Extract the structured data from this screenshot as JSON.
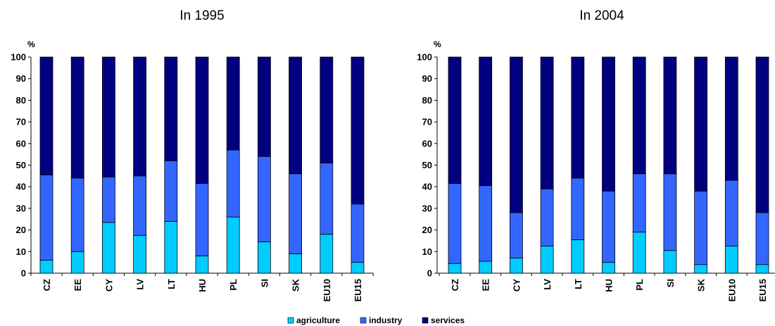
{
  "colors": {
    "agriculture": "#00CCFF",
    "industry": "#3366FF",
    "services": "#000080"
  },
  "chart_data": [
    {
      "type": "bar",
      "stacked": true,
      "title": "In 1995",
      "ylabel": "%",
      "ylim": [
        0,
        100
      ],
      "yticks": [
        0,
        10,
        20,
        30,
        40,
        50,
        60,
        70,
        80,
        90,
        100
      ],
      "categories": [
        "CZ",
        "EE",
        "CY",
        "LV",
        "LT",
        "HU",
        "PL",
        "SI",
        "SK",
        "EU10",
        "EU15"
      ],
      "series": [
        {
          "name": "agriculture",
          "values": [
            6,
            10,
            23.5,
            17.5,
            24,
            8,
            26,
            14.5,
            9,
            18,
            5
          ]
        },
        {
          "name": "industry",
          "values": [
            39.5,
            34,
            21,
            27.5,
            28,
            33.5,
            31,
            39.5,
            37,
            33,
            27
          ]
        },
        {
          "name": "services",
          "values": [
            54.5,
            56,
            55.5,
            55,
            48,
            58.5,
            43,
            46,
            54,
            49,
            68
          ]
        }
      ]
    },
    {
      "type": "bar",
      "stacked": true,
      "title": "In 2004",
      "ylabel": "%",
      "ylim": [
        0,
        100
      ],
      "yticks": [
        0,
        10,
        20,
        30,
        40,
        50,
        60,
        70,
        80,
        90,
        100
      ],
      "categories": [
        "CZ",
        "EE",
        "CY",
        "LV",
        "LT",
        "HU",
        "PL",
        "SI",
        "SK",
        "EU10",
        "EU15"
      ],
      "series": [
        {
          "name": "agriculture",
          "values": [
            4.5,
            5.5,
            7,
            12.5,
            15.5,
            5,
            19,
            10.5,
            4,
            12.5,
            4
          ]
        },
        {
          "name": "industry",
          "values": [
            37,
            35,
            21,
            26.5,
            28.5,
            33,
            27,
            35.5,
            34,
            30.5,
            24
          ]
        },
        {
          "name": "services",
          "values": [
            58.5,
            59.5,
            72,
            61,
            56,
            62,
            54,
            54,
            62,
            57,
            72
          ]
        }
      ]
    }
  ],
  "legend": [
    "agriculture",
    "industry",
    "services"
  ]
}
